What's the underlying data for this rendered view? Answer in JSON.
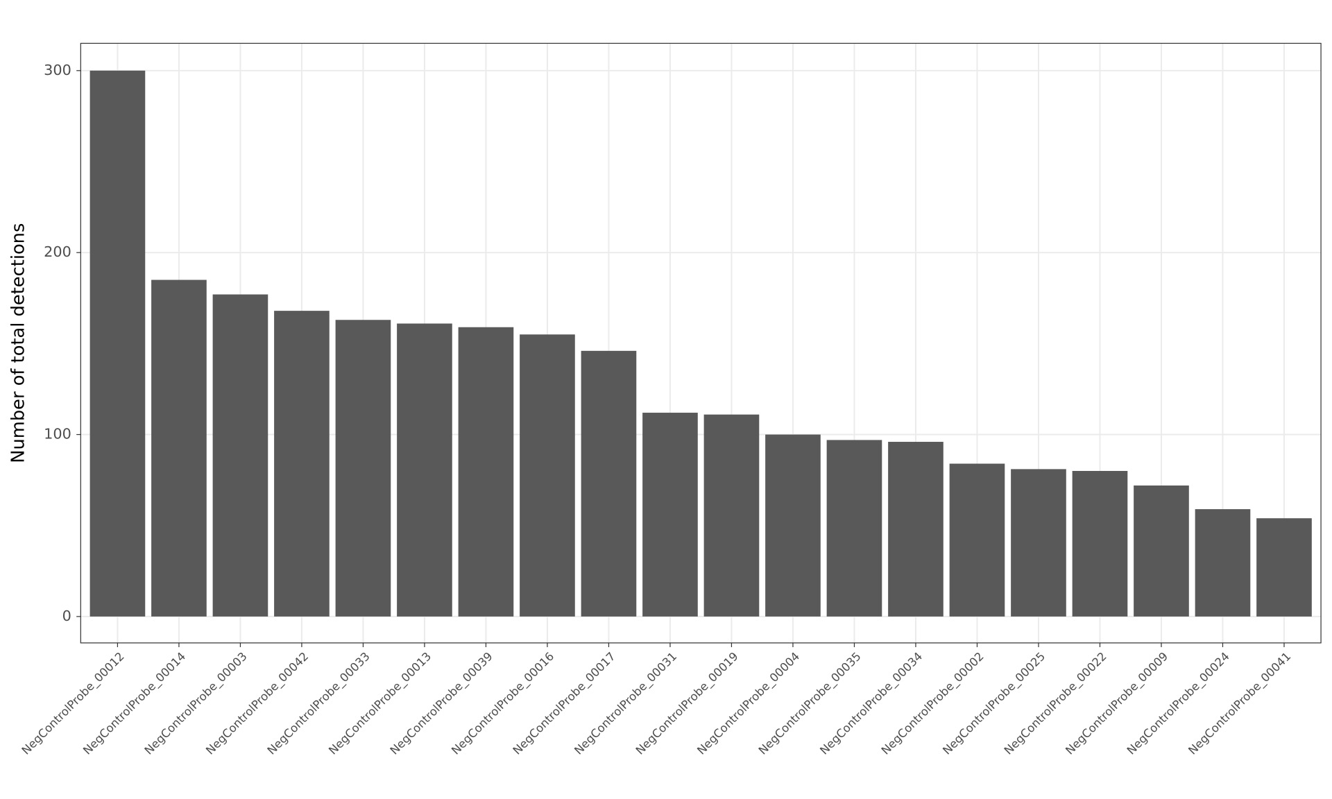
{
  "chart_data": {
    "type": "bar",
    "y_label": "Number of total detections",
    "categories": [
      "NegControlProbe_00012",
      "NegControlProbe_00014",
      "NegControlProbe_00003",
      "NegControlProbe_00042",
      "NegControlProbe_00033",
      "NegControlProbe_00013",
      "NegControlProbe_00039",
      "NegControlProbe_00016",
      "NegControlProbe_00017",
      "NegControlProbe_00031",
      "NegControlProbe_00019",
      "NegControlProbe_00004",
      "NegControlProbe_00035",
      "NegControlProbe_00034",
      "NegControlProbe_00002",
      "NegControlProbe_00025",
      "NegControlProbe_00022",
      "NegControlProbe_00009",
      "NegControlProbe_00024",
      "NegControlProbe_00041"
    ],
    "values": [
      300,
      185,
      177,
      168,
      163,
      161,
      159,
      155,
      146,
      112,
      111,
      100,
      97,
      96,
      84,
      81,
      80,
      72,
      59,
      54
    ],
    "color": "#595959",
    "ylim": [
      -14.5,
      315
    ],
    "yticks": [
      0,
      100,
      200,
      300
    ],
    "grid": true
  }
}
